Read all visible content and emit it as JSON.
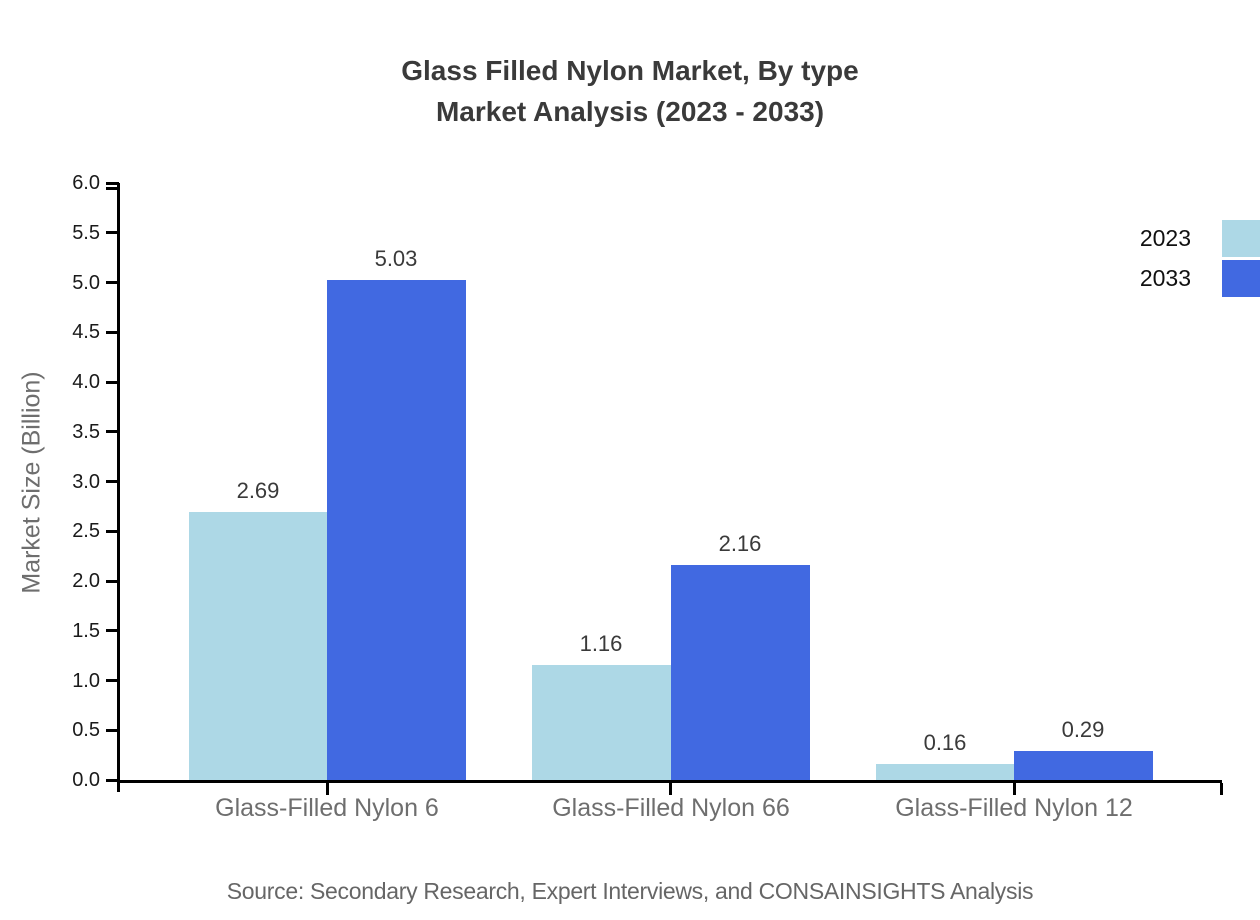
{
  "figure": {
    "title_line1": "Glass Filled Nylon Market, By type",
    "title_line2": "Market Analysis (2023 - 2033)",
    "source": "Source: Secondary Research, Expert Interviews, and CONSAINSIGHTS Analysis"
  },
  "y_axis": {
    "label": "Market Size (Billion)",
    "tick_labels": [
      "0.0",
      "0.5",
      "1.0",
      "1.5",
      "2.0",
      "2.5",
      "3.0",
      "3.5",
      "4.0",
      "4.5",
      "5.0",
      "5.5",
      "6.0"
    ]
  },
  "legend": {
    "items": [
      {
        "label": "2023",
        "color": "#ADD8E6"
      },
      {
        "label": "2033",
        "color": "#4169E1"
      }
    ]
  },
  "chart_data": {
    "type": "bar",
    "title": "Glass Filled Nylon Market, By type Market Analysis (2023 - 2033)",
    "categories": [
      "Glass-Filled Nylon 6",
      "Glass-Filled Nylon 66",
      "Glass-Filled Nylon 12"
    ],
    "series": [
      {
        "name": "2023",
        "color": "#ADD8E6",
        "values": [
          2.69,
          1.16,
          0.16
        ],
        "labels": [
          "2.69",
          "1.16",
          "0.16"
        ]
      },
      {
        "name": "2033",
        "color": "#4169E1",
        "values": [
          5.03,
          2.16,
          0.29
        ],
        "labels": [
          "5.03",
          "2.16",
          "0.29"
        ]
      }
    ],
    "xlabel": "",
    "ylabel": "Market Size (Billion)",
    "ylim": [
      0,
      6
    ],
    "ytick_step": 0.5,
    "grid": false,
    "legend_position": "upper right outside"
  }
}
